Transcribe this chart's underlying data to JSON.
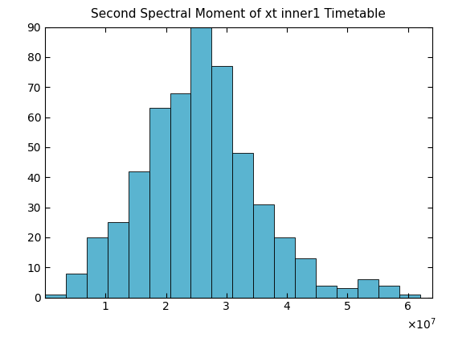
{
  "title": "Second Spectral Moment of xt inner1 Timetable",
  "bar_counts": [
    1,
    8,
    20,
    25,
    42,
    63,
    68,
    90,
    77,
    48,
    31,
    20,
    13,
    4,
    3,
    6,
    4,
    1
  ],
  "bin_start": 0,
  "bin_end": 62000000.0,
  "num_bins": 18,
  "bar_color": "#5ab4d0",
  "bar_edge_color": "#000000",
  "xlim": [
    0,
    64000000.0
  ],
  "ylim": [
    0,
    90
  ],
  "yticks": [
    0,
    10,
    20,
    30,
    40,
    50,
    60,
    70,
    80,
    90
  ],
  "xticks": [
    10000000.0,
    20000000.0,
    30000000.0,
    40000000.0,
    50000000.0,
    60000000.0
  ],
  "xtick_labels": [
    "1",
    "2",
    "3",
    "4",
    "5",
    "6"
  ],
  "scale_label": "\\times10^7",
  "title_fontsize": 11,
  "tick_fontsize": 10,
  "figsize": [
    5.6,
    4.2
  ],
  "dpi": 100
}
